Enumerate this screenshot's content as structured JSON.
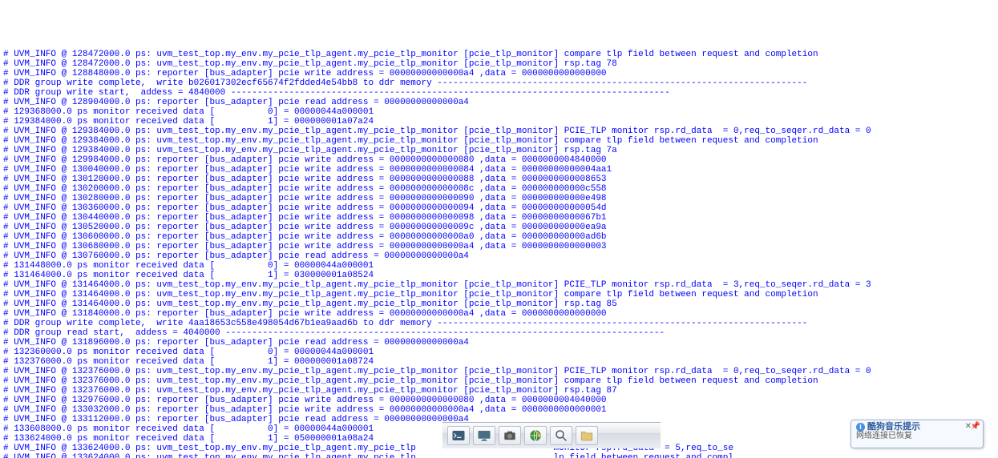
{
  "colors": {
    "text": "#0000ff",
    "background": "#ffffff",
    "taskbar_bg_top": "#fdfdfd",
    "taskbar_bg_bottom": "#d6dbe2",
    "balloon_border": "#9fb6d4",
    "balloon_title": "#2c5a9d"
  },
  "typography": {
    "font_family": "Courier New",
    "font_size": 11,
    "line_height": 12
  },
  "log_lines": [
    "# UVM_INFO @ 128472000.0 ps: uvm_test_top.my_env.my_pcie_tlp_agent.my_pcie_tlp_monitor [pcie_tlp_monitor] compare tlp field between request and completion",
    "# UVM_INFO @ 128472000.0 ps: uvm_test_top.my_env.my_pcie_tlp_agent.my_pcie_tlp_monitor [pcie_tlp_monitor] rsp.tag 78",
    "# UVM_INFO @ 128848000.0 ps: reporter [bus_adapter] pcie write address = 00000000000000a4 ,data = 0000000000000000",
    "# DDR group write complete,  write b026017302ecf65674f2fdded4e54bb8 to ddr memory ----------------------------------------------------------------------",
    "# DDR group write start,  addess = 4840000 -----------------------------------------------------------------------------------",
    "# UVM_INFO @ 128904000.0 ps: reporter [bus_adapter] pcie read address = 00000000000000a4",
    "# 129368000.0 ps monitor received data [          0] = 00000044a000001",
    "# 129384000.0 ps monitor received data [          1] = 000000001a07a24",
    "# UVM_INFO @ 129384000.0 ps: uvm_test_top.my_env.my_pcie_tlp_agent.my_pcie_tlp_monitor [pcie_tlp_monitor] PCIE_TLP monitor rsp.rd_data  = 0,req_to_seqer.rd_data = 0",
    "# UVM_INFO @ 129384000.0 ps: uvm_test_top.my_env.my_pcie_tlp_agent.my_pcie_tlp_monitor [pcie_tlp_monitor] compare tlp field between request and completion",
    "# UVM_INFO @ 129384000.0 ps: uvm_test_top.my_env.my_pcie_tlp_agent.my_pcie_tlp_monitor [pcie_tlp_monitor] rsp.tag 7a",
    "# UVM_INFO @ 129984000.0 ps: reporter [bus_adapter] pcie write address = 0000000000000080 ,data = 0000000004840000",
    "# UVM_INFO @ 130040000.0 ps: reporter [bus_adapter] pcie write address = 0000000000000084 ,data = 00000000000004aa1",
    "# UVM_INFO @ 130120000.0 ps: reporter [bus_adapter] pcie write address = 0000000000000088 ,data = 0000000000008653",
    "# UVM_INFO @ 130200000.0 ps: reporter [bus_adapter] pcie write address = 000000000000008c ,data = 000000000000c558",
    "# UVM_INFO @ 130280000.0 ps: reporter [bus_adapter] pcie write address = 0000000000000090 ,data = 000000000000e498",
    "# UVM_INFO @ 130360000.0 ps: reporter [bus_adapter] pcie write address = 0000000000000094 ,data = 000000000000054d",
    "# UVM_INFO @ 130440000.0 ps: reporter [bus_adapter] pcie write address = 0000000000000098 ,data = 00000000000067b1",
    "# UVM_INFO @ 130520000.0 ps: reporter [bus_adapter] pcie write address = 000000000000009c ,data = 000000000000ea9a",
    "# UVM_INFO @ 130600000.0 ps: reporter [bus_adapter] pcie write address = 00000000000000a0 ,data = 000000000000ad6b",
    "# UVM_INFO @ 130680000.0 ps: reporter [bus_adapter] pcie write address = 00000000000000a4 ,data = 0000000000000003",
    "# UVM_INFO @ 130760000.0 ps: reporter [bus_adapter] pcie read address = 00000000000000a4",
    "# 131448000.0 ps monitor received data [          0] = 00000044a000001",
    "# 131464000.0 ps monitor received data [          1] = 030000001a08524",
    "# UVM_INFO @ 131464000.0 ps: uvm_test_top.my_env.my_pcie_tlp_agent.my_pcie_tlp_monitor [pcie_tlp_monitor] PCIE_TLP monitor rsp.rd_data  = 3,req_to_seqer.rd_data = 3",
    "# UVM_INFO @ 131464000.0 ps: uvm_test_top.my_env.my_pcie_tlp_agent.my_pcie_tlp_monitor [pcie_tlp_monitor] compare tlp field between request and completion",
    "# UVM_INFO @ 131464000.0 ps: uvm_test_top.my_env.my_pcie_tlp_agent.my_pcie_tlp_monitor [pcie_tlp_monitor] rsp.tag 85",
    "# UVM_INFO @ 131840000.0 ps: reporter [bus_adapter] pcie write address = 00000000000000a4 ,data = 0000000000000000",
    "# DDR group write complete,  write 4aa18653c558e498054d67b1ea9aad6b to ddr memory ----------------------------------------------------------------------",
    "# DDR group read start,  addess = 4040000 -----------------------------------------------------------------------------------",
    "# UVM_INFO @ 131896000.0 ps: reporter [bus_adapter] pcie read address = 00000000000000a4",
    "# 132360000.0 ps monitor received data [          0] = 00000044a000001",
    "# 132376000.0 ps monitor received data [          1] = 000000001a08724",
    "# UVM_INFO @ 132376000.0 ps: uvm_test_top.my_env.my_pcie_tlp_agent.my_pcie_tlp_monitor [pcie_tlp_monitor] PCIE_TLP monitor rsp.rd_data  = 0,req_to_seqer.rd_data = 0",
    "# UVM_INFO @ 132376000.0 ps: uvm_test_top.my_env.my_pcie_tlp_agent.my_pcie_tlp_monitor [pcie_tlp_monitor] compare tlp field between request and completion",
    "# UVM_INFO @ 132376000.0 ps: uvm_test_top.my_env.my_pcie_tlp_agent.my_pcie_tlp_monitor [pcie_tlp_monitor] rsp.tag 87",
    "# UVM_INFO @ 132976000.0 ps: reporter [bus_adapter] pcie write address = 0000000000000080 ,data = 0000000004040000",
    "# UVM_INFO @ 133032000.0 ps: reporter [bus_adapter] pcie write address = 00000000000000a4 ,data = 0000000000000001",
    "# UVM_INFO @ 133112000.0 ps: reporter [bus_adapter] pcie read address = 00000000000000a4",
    "# 133608000.0 ps monitor received data [          0] = 00000044a000001",
    "# 133624000.0 ps monitor received data [          1] = 050000001a08a24",
    "# UVM_INFO @ 133624000.0 ps: uvm_test_top.my_env.my_pcie_tlp_agent.my_pcie_tlp                          monitor rsp.rd_data  = 5,req_to_se",
    "# UVM_INFO @ 133624000.0 ps: uvm_test_top.my_env.my_pcie_tlp_agent.my_pcie_tlp                          lp field between request and compl"
  ],
  "balloon": {
    "title": "酷狗音乐提示",
    "subtitle": "网络连接已恢复"
  }
}
